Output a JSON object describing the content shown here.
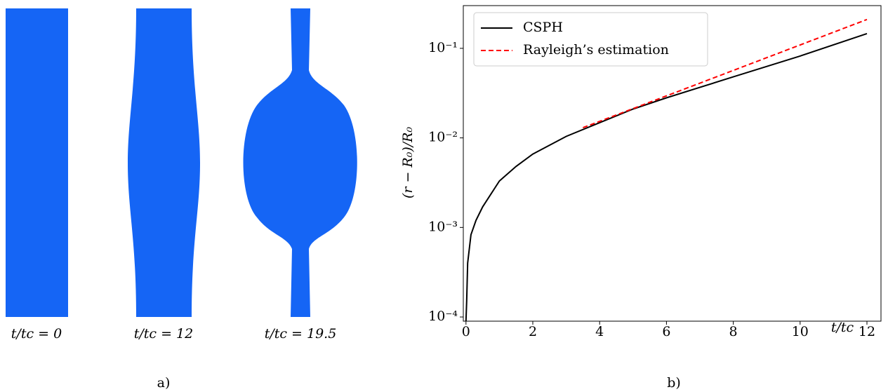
{
  "panels": {
    "a": {
      "labels": [
        "t/tc = 0",
        "t/tc = 12",
        "t/tc = 19.5"
      ],
      "caption": "a)"
    }
  },
  "chart_data": {
    "type": "line",
    "caption": "b)",
    "xlabel": "t/tc",
    "ylabel": "(r − R₀)/R₀",
    "yscale": "log",
    "legend": "upper left",
    "xlim": [
      -0.08,
      12.42
    ],
    "xticks": [
      0,
      2,
      4,
      6,
      8,
      10,
      12
    ],
    "ylim": [
      8.98e-05,
      0.3
    ],
    "yticks": [
      {
        "value": 0.0001,
        "label": "10⁻⁴"
      },
      {
        "value": 0.001,
        "label": "10⁻³"
      },
      {
        "value": 0.01,
        "label": "10⁻²"
      },
      {
        "value": 0.1,
        "label": "10⁻¹"
      }
    ],
    "series": [
      {
        "name": "CSPH",
        "color": "#000000",
        "linestyle": "solid",
        "x": [
          0,
          0.02,
          0.05,
          0.15,
          0.3,
          0.5,
          1,
          1.5,
          2,
          3,
          4,
          5,
          6,
          8,
          10,
          12
        ],
        "values": [
          9e-05,
          0.00015,
          0.0004,
          0.00083,
          0.0012,
          0.0017,
          0.0033,
          0.0048,
          0.0066,
          0.0104,
          0.0148,
          0.021,
          0.028,
          0.048,
          0.082,
          0.146
        ]
      },
      {
        "name": "Rayleigh’s estimation",
        "color": "#ff0000",
        "linestyle": "dashed",
        "x": [
          3.5,
          12
        ],
        "values": [
          0.013,
          0.21
        ]
      }
    ]
  }
}
